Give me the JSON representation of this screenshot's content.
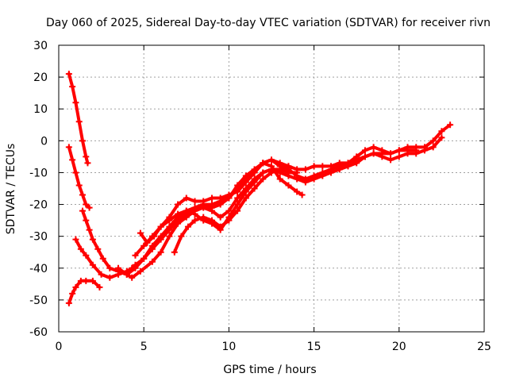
{
  "chart_data": {
    "type": "scatter",
    "title": "Day 060 of 2025, Sidereal Day-to-day VTEC variation (SDTVAR) for receiver rivn",
    "xlabel": "GPS time / hours",
    "ylabel": "SDTVAR / TECUs",
    "xlim": [
      0,
      25
    ],
    "ylim": [
      -60,
      30
    ],
    "xticks": [
      0,
      5,
      10,
      15,
      20,
      25
    ],
    "yticks": [
      -60,
      -50,
      -40,
      -30,
      -20,
      -10,
      0,
      10,
      20,
      30
    ],
    "grid": true,
    "marker": "plus",
    "color": "#ff0000",
    "series": [
      {
        "name": "track-1",
        "x": [
          0.6,
          0.8,
          1.0,
          1.2,
          1.4,
          1.6,
          1.7
        ],
        "y": [
          21,
          17,
          12,
          6,
          0,
          -5,
          -7
        ]
      },
      {
        "name": "track-2",
        "x": [
          0.6,
          0.8,
          1.0,
          1.2,
          1.4,
          1.6,
          1.8
        ],
        "y": [
          -2,
          -6,
          -10,
          -14,
          -17,
          -20,
          -21
        ]
      },
      {
        "name": "track-3",
        "x": [
          1.4,
          1.6,
          1.8,
          2.0,
          2.3,
          2.6,
          3.0,
          3.5,
          4.0,
          4.3,
          4.8,
          5.5,
          6.0,
          6.5,
          7.0,
          7.5,
          8.0,
          8.5,
          9.0,
          9.5,
          10.0,
          10.5,
          11.0,
          11.5,
          12.0,
          12.5,
          13.0,
          13.5,
          14.0
        ],
        "y": [
          -22,
          -25,
          -28,
          -31,
          -34,
          -37,
          -40,
          -41,
          -42,
          -43,
          -41,
          -38,
          -35,
          -30,
          -26,
          -24,
          -22,
          -21,
          -22,
          -24,
          -22,
          -18,
          -15,
          -12,
          -10,
          -9,
          -9,
          -10,
          -10
        ]
      },
      {
        "name": "track-4",
        "x": [
          1.0,
          1.3,
          1.6,
          2.0,
          2.5,
          3.0,
          3.5,
          4.0,
          4.3,
          4.5,
          5.0,
          5.5,
          6.0,
          6.5,
          7.0,
          7.5,
          8.0,
          8.5,
          9.0,
          9.5,
          10.0,
          10.5,
          11.0,
          11.5,
          12.0,
          12.5,
          13.0,
          13.5,
          14.0,
          14.3
        ],
        "y": [
          -31,
          -34,
          -36,
          -39,
          -42,
          -43,
          -42,
          -41,
          -40,
          -39,
          -37,
          -34,
          -31,
          -28,
          -25,
          -23,
          -21,
          -20,
          -21,
          -20,
          -18,
          -14,
          -11,
          -9,
          -7,
          -8,
          -12,
          -14,
          -16,
          -17
        ]
      },
      {
        "name": "track-5",
        "x": [
          0.6,
          0.8,
          1.0,
          1.3,
          1.6,
          2.0,
          2.4
        ],
        "y": [
          -51,
          -48,
          -46,
          -44,
          -44,
          -44,
          -46
        ]
      },
      {
        "name": "track-6",
        "x": [
          3.5,
          4.0,
          4.5,
          5.0,
          5.5,
          6.0,
          6.5,
          7.0,
          7.5,
          8.0,
          8.5,
          9.0,
          9.5,
          10.0,
          10.5,
          11.0,
          11.5,
          12.0,
          12.5,
          13.0,
          13.5,
          14.0,
          14.5,
          15.0,
          15.5,
          16.0,
          16.5,
          17.0,
          17.5,
          18.0,
          18.5,
          19.0,
          19.5,
          20.0,
          20.5,
          21.0,
          21.5,
          22.0,
          22.5,
          23.0
        ],
        "y": [
          -40,
          -42,
          -40,
          -37,
          -33,
          -30,
          -27,
          -24,
          -22,
          -21,
          -20,
          -20,
          -19,
          -18,
          -15,
          -12,
          -10,
          -7,
          -6,
          -8,
          -9,
          -11,
          -12,
          -11,
          -10,
          -9,
          -8,
          -7,
          -5,
          -3,
          -2,
          -3,
          -4,
          -3,
          -2,
          -2,
          -2,
          0,
          3,
          5
        ]
      },
      {
        "name": "track-7",
        "x": [
          4.5,
          5.0,
          5.5,
          6.0,
          6.5,
          7.0,
          7.5,
          8.0,
          8.5,
          9.0,
          9.5,
          10.0,
          10.5,
          11.0,
          11.5,
          12.0,
          12.5,
          13.0,
          13.5,
          14.0,
          14.5,
          15.0,
          15.5,
          16.0,
          16.5,
          17.0,
          17.5,
          18.0,
          18.5,
          19.0,
          19.5,
          20.0,
          20.5,
          21.0,
          21.5,
          22.0,
          22.5
        ],
        "y": [
          -36,
          -33,
          -30,
          -27,
          -25,
          -23,
          -22,
          -23,
          -25,
          -26,
          -28,
          -24,
          -20,
          -16,
          -13,
          -10,
          -9,
          -10,
          -11,
          -12,
          -13,
          -12,
          -11,
          -10,
          -9,
          -8,
          -7,
          -5,
          -4,
          -5,
          -6,
          -5,
          -4,
          -4,
          -3,
          -2,
          1
        ]
      },
      {
        "name": "track-8",
        "x": [
          6.8,
          7.2,
          7.6,
          8.0,
          8.5,
          9.0,
          9.5,
          10.0,
          10.5,
          11.0,
          11.5,
          12.0,
          12.5,
          13.0,
          13.5,
          14.0,
          14.5,
          15.0,
          15.5,
          16.0,
          16.5,
          17.0,
          17.5,
          18.0,
          18.5,
          19.0,
          19.5,
          20.0,
          20.5,
          21.0
        ],
        "y": [
          -35,
          -30,
          -27,
          -25,
          -24,
          -25,
          -27,
          -25,
          -22,
          -18,
          -15,
          -12,
          -10,
          -9,
          -8,
          -9,
          -9,
          -8,
          -8,
          -8,
          -7,
          -7,
          -6,
          -5,
          -4,
          -4,
          -4,
          -3,
          -3,
          -3
        ]
      },
      {
        "name": "track-9",
        "x": [
          4.8,
          5.2,
          5.6,
          6.0,
          6.5,
          7.0,
          7.5,
          8.0,
          8.5,
          9.0,
          9.5,
          10.0,
          10.5,
          11.0,
          11.5,
          12.0,
          12.5,
          13.0,
          13.5
        ],
        "y": [
          -29,
          -32,
          -30,
          -27,
          -24,
          -20,
          -18,
          -19,
          -19,
          -18,
          -18,
          -17,
          -16,
          -13,
          -10,
          -7,
          -6,
          -7,
          -8
        ]
      }
    ]
  }
}
